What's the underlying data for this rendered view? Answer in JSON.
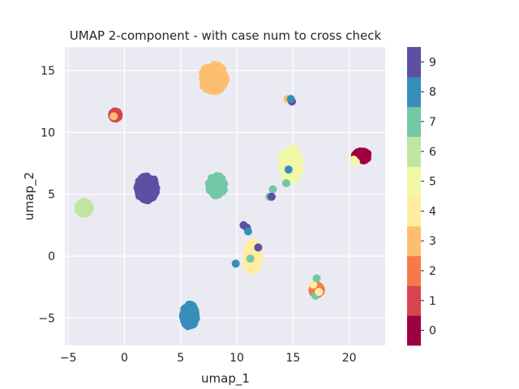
{
  "chart_data": {
    "type": "scatter",
    "title": "UMAP 2-component - with case num to cross check",
    "xlabel": "umap_1",
    "ylabel": "umap_2",
    "xlim": [
      -5.3,
      23.2
    ],
    "ylim": [
      -7.2,
      16.9
    ],
    "xticks": [
      -5,
      0,
      5,
      10,
      15,
      20
    ],
    "yticks": [
      -5,
      0,
      5,
      10,
      15
    ],
    "grid": true,
    "background": "#eaeaf2",
    "colorbar": {
      "labels": [
        "0",
        "1",
        "2",
        "3",
        "4",
        "5",
        "6",
        "7",
        "8",
        "9"
      ],
      "colors": [
        "#9e0142",
        "#d8434e",
        "#f67a49",
        "#fdbf6f",
        "#feeda1",
        "#f1f9a9",
        "#bfe5a0",
        "#74c7a5",
        "#378ebb",
        "#5e4fa2"
      ]
    },
    "clusters": [
      {
        "label": 3,
        "cx": 7.9,
        "cy": 14.4,
        "rx": 1.1,
        "ry": 1.1
      },
      {
        "label": 9,
        "cx": 2.0,
        "cy": 5.5,
        "rx": 0.9,
        "ry": 1.0
      },
      {
        "label": 7,
        "cx": 8.2,
        "cy": 5.7,
        "rx": 0.7,
        "ry": 0.8
      },
      {
        "label": 5,
        "cx": 14.8,
        "cy": 7.4,
        "rx": 0.9,
        "ry": 1.4
      },
      {
        "label": 6,
        "cx": -3.6,
        "cy": 3.9,
        "rx": 0.5,
        "ry": 0.5
      },
      {
        "label": 8,
        "cx": 5.8,
        "cy": -4.8,
        "rx": 0.6,
        "ry": 0.9
      },
      {
        "label": 4,
        "cx": 11.4,
        "cy": 0.0,
        "rx": 0.6,
        "ry": 1.2
      },
      {
        "label": 0,
        "cx": 21.1,
        "cy": 8.1,
        "rx": 0.6,
        "ry": 0.4
      },
      {
        "label": 1,
        "cx": -0.8,
        "cy": 11.4,
        "rx": 0.3,
        "ry": 0.3
      },
      {
        "label": 2,
        "cx": 17.1,
        "cy": -2.7,
        "rx": 0.4,
        "ry": 0.4
      }
    ],
    "points": [
      {
        "x": -0.95,
        "y": 11.3,
        "label": 3
      },
      {
        "x": 14.5,
        "y": 12.7,
        "label": 3
      },
      {
        "x": 14.9,
        "y": 12.5,
        "label": 9
      },
      {
        "x": 14.8,
        "y": 12.7,
        "label": 8
      },
      {
        "x": 14.6,
        "y": 7.0,
        "label": 8
      },
      {
        "x": 14.4,
        "y": 5.9,
        "label": 7
      },
      {
        "x": 13.2,
        "y": 5.4,
        "label": 7
      },
      {
        "x": 12.9,
        "y": 4.8,
        "label": 7
      },
      {
        "x": 13.1,
        "y": 4.8,
        "label": 9
      },
      {
        "x": 10.6,
        "y": 2.5,
        "label": 9
      },
      {
        "x": 10.9,
        "y": 2.3,
        "label": 9
      },
      {
        "x": 11.0,
        "y": 2.0,
        "label": 8
      },
      {
        "x": 11.9,
        "y": 0.7,
        "label": 9
      },
      {
        "x": 11.2,
        "y": -0.2,
        "label": 7
      },
      {
        "x": 9.9,
        "y": -0.6,
        "label": 8
      },
      {
        "x": 16.8,
        "y": -2.3,
        "label": 4
      },
      {
        "x": 17.1,
        "y": -1.8,
        "label": 7
      },
      {
        "x": 17.0,
        "y": -3.2,
        "label": 7
      },
      {
        "x": 17.3,
        "y": -2.9,
        "label": 4
      },
      {
        "x": 20.4,
        "y": 7.8,
        "label": 4
      },
      {
        "x": 20.6,
        "y": 7.6,
        "label": 5
      }
    ]
  }
}
